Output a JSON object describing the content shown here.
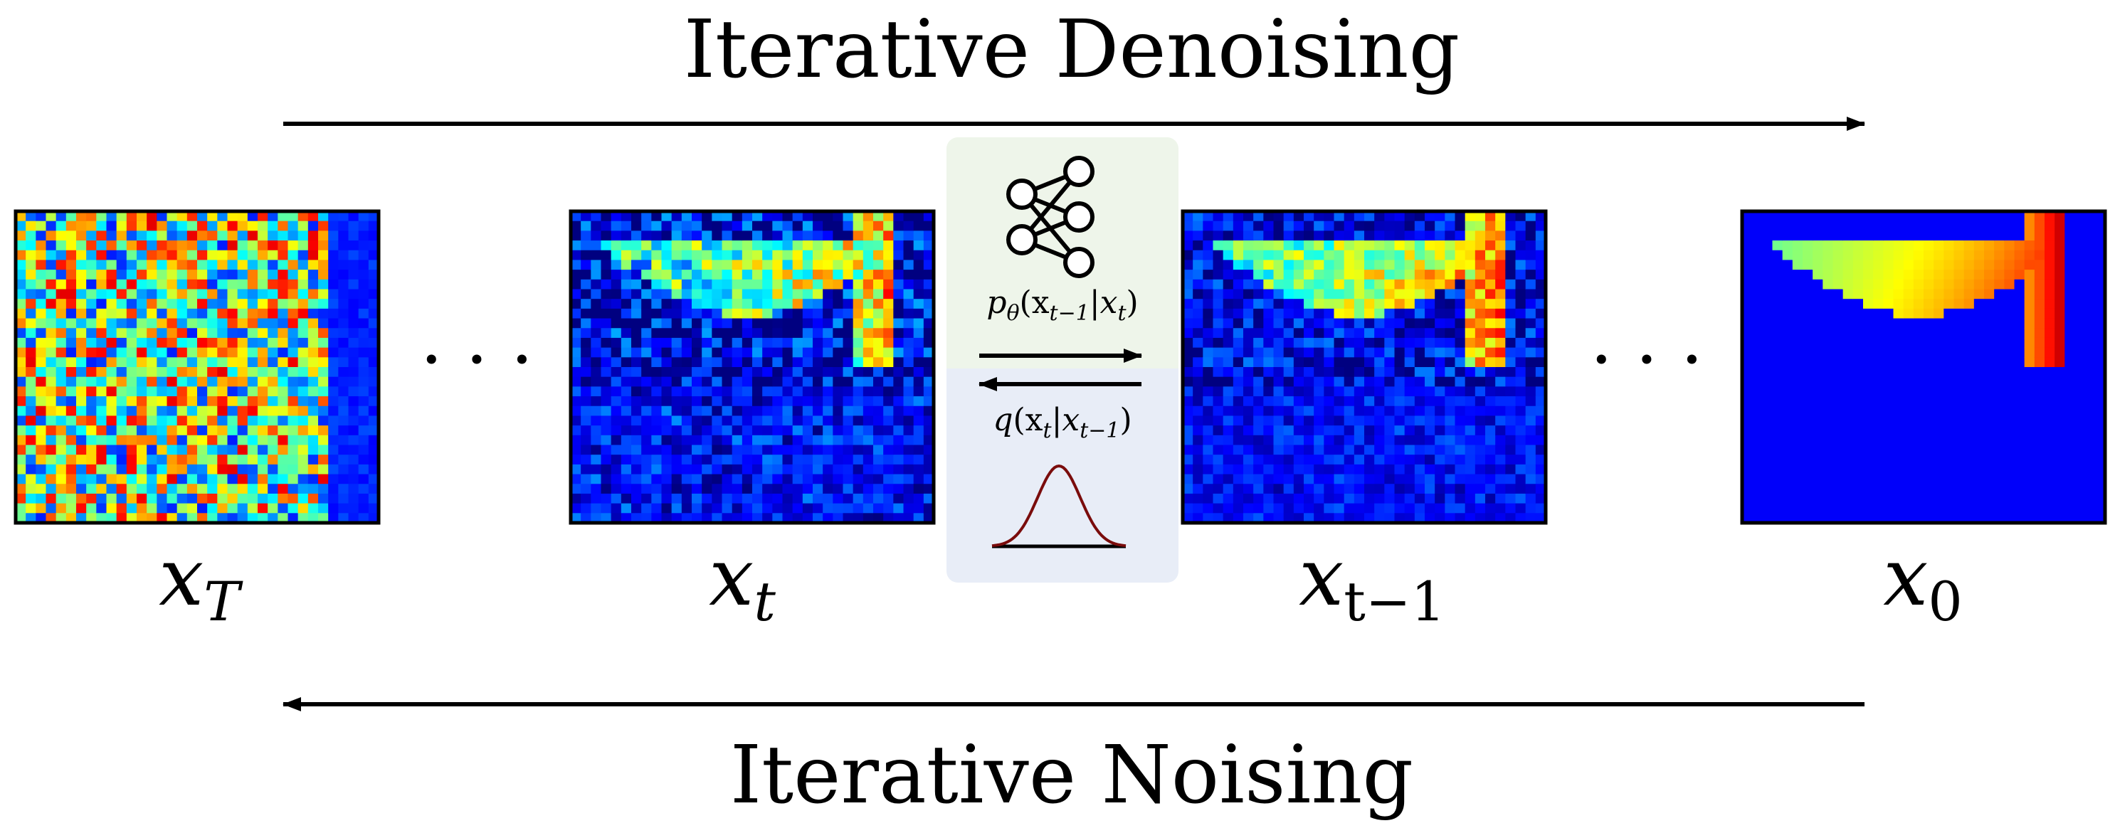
{
  "title_top": "Iterative Denoising",
  "title_bottom": "Iterative Noising",
  "ellipsis": "· · ·",
  "panels": [
    {
      "id": "xT",
      "var": "x",
      "sub": "T",
      "noise": 0.95,
      "signal": 0.05
    },
    {
      "id": "xt",
      "var": "x",
      "sub": "t",
      "noise": 0.45,
      "signal": 0.75
    },
    {
      "id": "xt1",
      "var": "x",
      "sub": "t−1",
      "noise": 0.32,
      "signal": 0.85
    },
    {
      "id": "x0",
      "var": "x",
      "sub": "0",
      "noise": 0.0,
      "signal": 1.0
    }
  ],
  "model": {
    "reverse_label": {
      "fn": "p",
      "param": "θ",
      "args": "(x",
      "args_sub": "t−1",
      "mid": "|x",
      "mid_sub": "t",
      "close": ")"
    },
    "forward_label": {
      "fn": "q",
      "args": "(x",
      "args_sub": "t",
      "mid": "|x",
      "mid_sub": "t−1",
      "close": ")"
    },
    "icons": [
      "neural-network-icon",
      "gaussian-curve-icon"
    ]
  },
  "colors": {
    "green_panel": "#eef5ea",
    "blue_panel": "#e8edf7",
    "curve": "#7a0c0c",
    "arrow": "#000000"
  }
}
